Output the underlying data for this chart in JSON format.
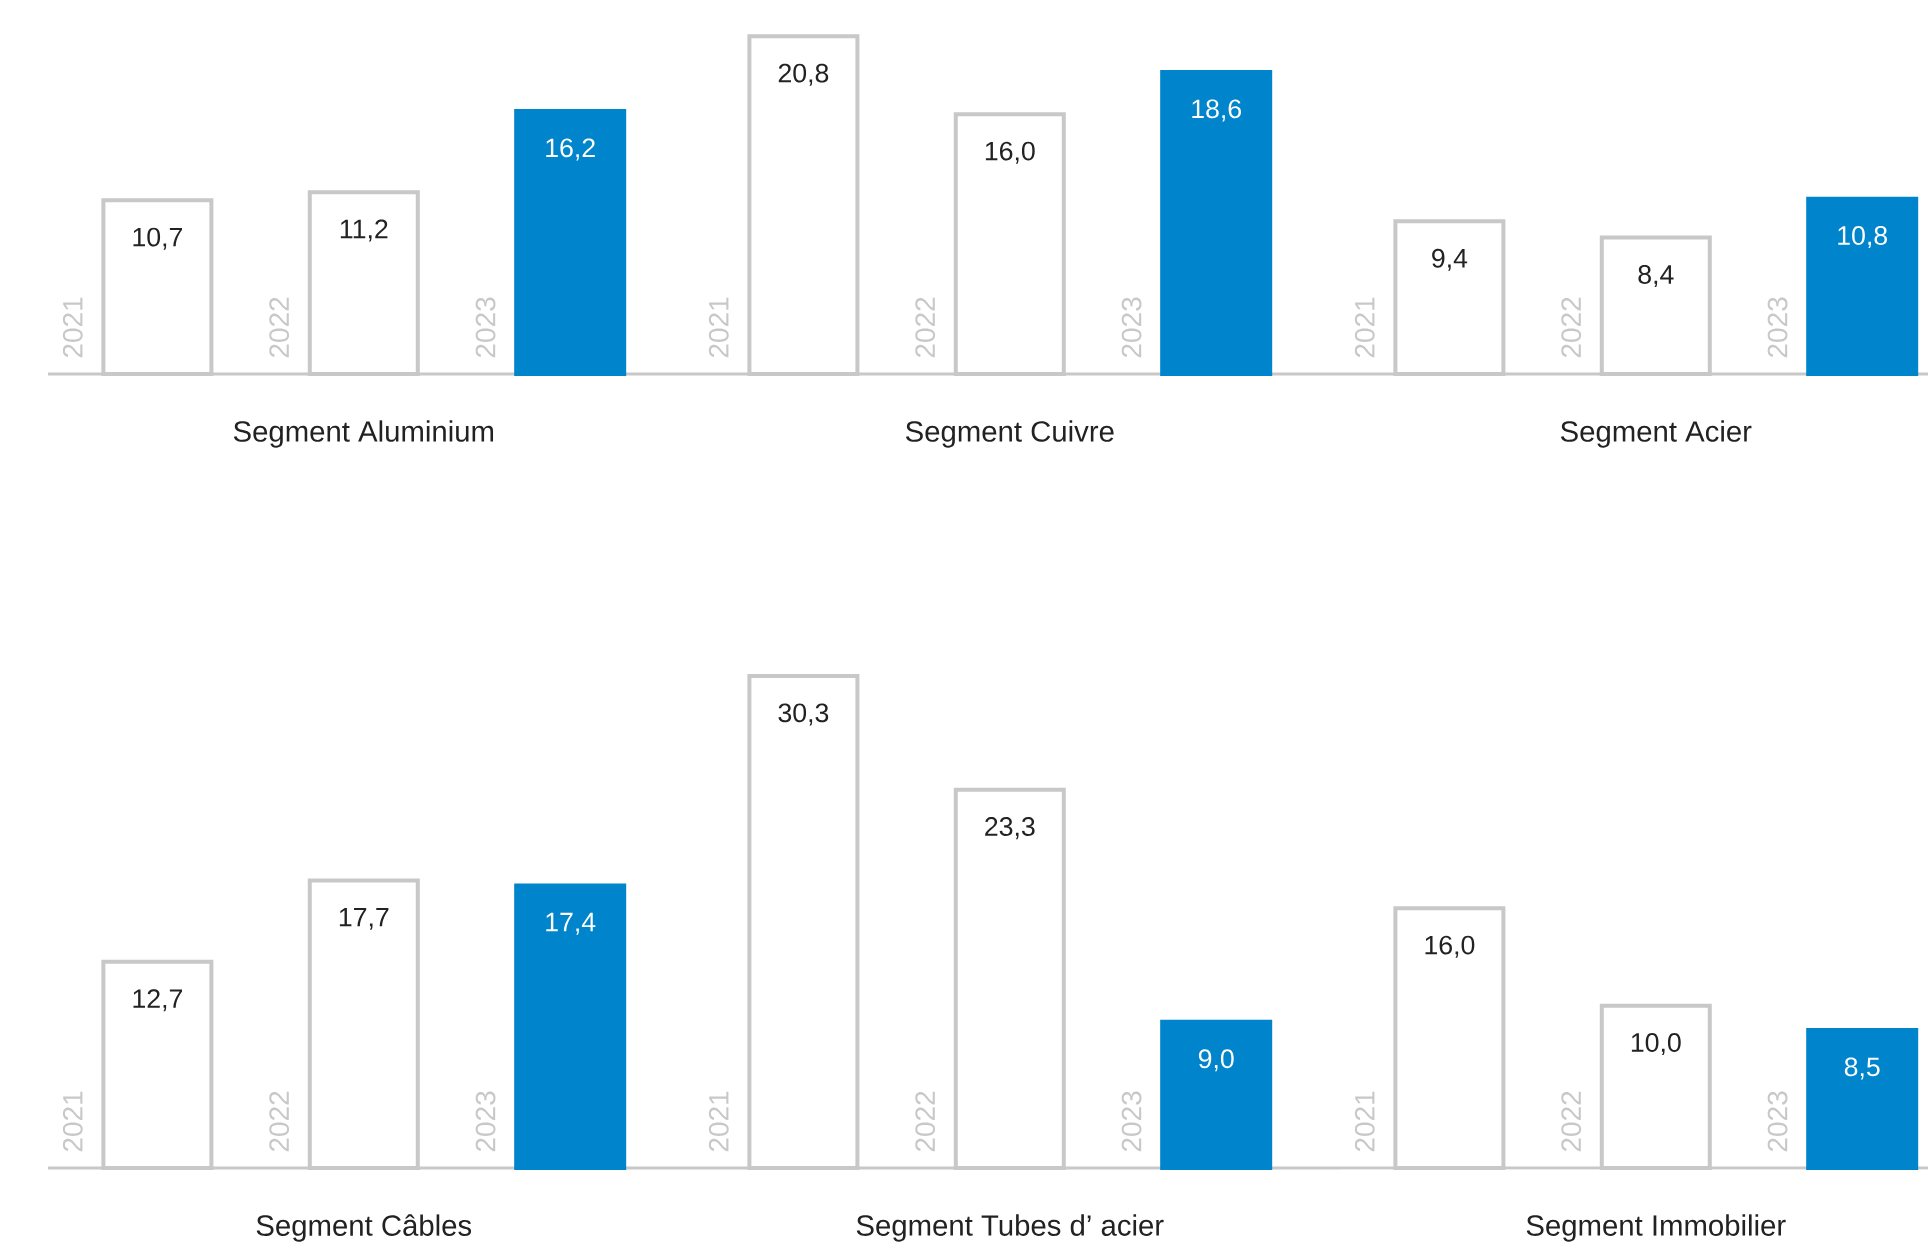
{
  "chart_data": [
    {
      "type": "bar",
      "title": "Segment Aluminium",
      "categories": [
        "2021",
        "2022",
        "2023"
      ],
      "values": [
        10.7,
        11.2,
        16.2
      ],
      "value_labels": [
        "10,7",
        "11,2",
        "16,2"
      ],
      "colors": [
        "#ffffff",
        "#ffffff",
        "#0085cc"
      ]
    },
    {
      "type": "bar",
      "title": "Segment Cuivre",
      "categories": [
        "2021",
        "2022",
        "2023"
      ],
      "values": [
        20.8,
        16.0,
        18.6
      ],
      "value_labels": [
        "20,8",
        "16,0",
        "18,6"
      ],
      "colors": [
        "#ffffff",
        "#ffffff",
        "#0085cc"
      ]
    },
    {
      "type": "bar",
      "title": "Segment Acier",
      "categories": [
        "2021",
        "2022",
        "2023"
      ],
      "values": [
        9.4,
        8.4,
        10.8
      ],
      "value_labels": [
        "9,4",
        "8,4",
        "10,8"
      ],
      "colors": [
        "#ffffff",
        "#ffffff",
        "#0085cc"
      ]
    },
    {
      "type": "bar",
      "title": "Segment Câbles",
      "categories": [
        "2021",
        "2022",
        "2023"
      ],
      "values": [
        12.7,
        17.7,
        17.4
      ],
      "value_labels": [
        "12,7",
        "17,7",
        "17,4"
      ],
      "colors": [
        "#ffffff",
        "#ffffff",
        "#0085cc"
      ]
    },
    {
      "type": "bar",
      "title": "Segment Tubes d’ acier",
      "categories": [
        "2021",
        "2022",
        "2023"
      ],
      "values": [
        30.3,
        23.3,
        9.0
      ],
      "value_labels": [
        "30,3",
        "23,3",
        "9,0"
      ],
      "colors": [
        "#ffffff",
        "#ffffff",
        "#0085cc"
      ]
    },
    {
      "type": "bar",
      "title": "Segment Immobilier",
      "categories": [
        "2021",
        "2022",
        "2023"
      ],
      "values": [
        16.0,
        10.0,
        8.5
      ],
      "value_labels": [
        "16,0",
        "10,0",
        "8,5"
      ],
      "colors": [
        "#ffffff",
        "#ffffff",
        "#0085cc"
      ]
    }
  ]
}
